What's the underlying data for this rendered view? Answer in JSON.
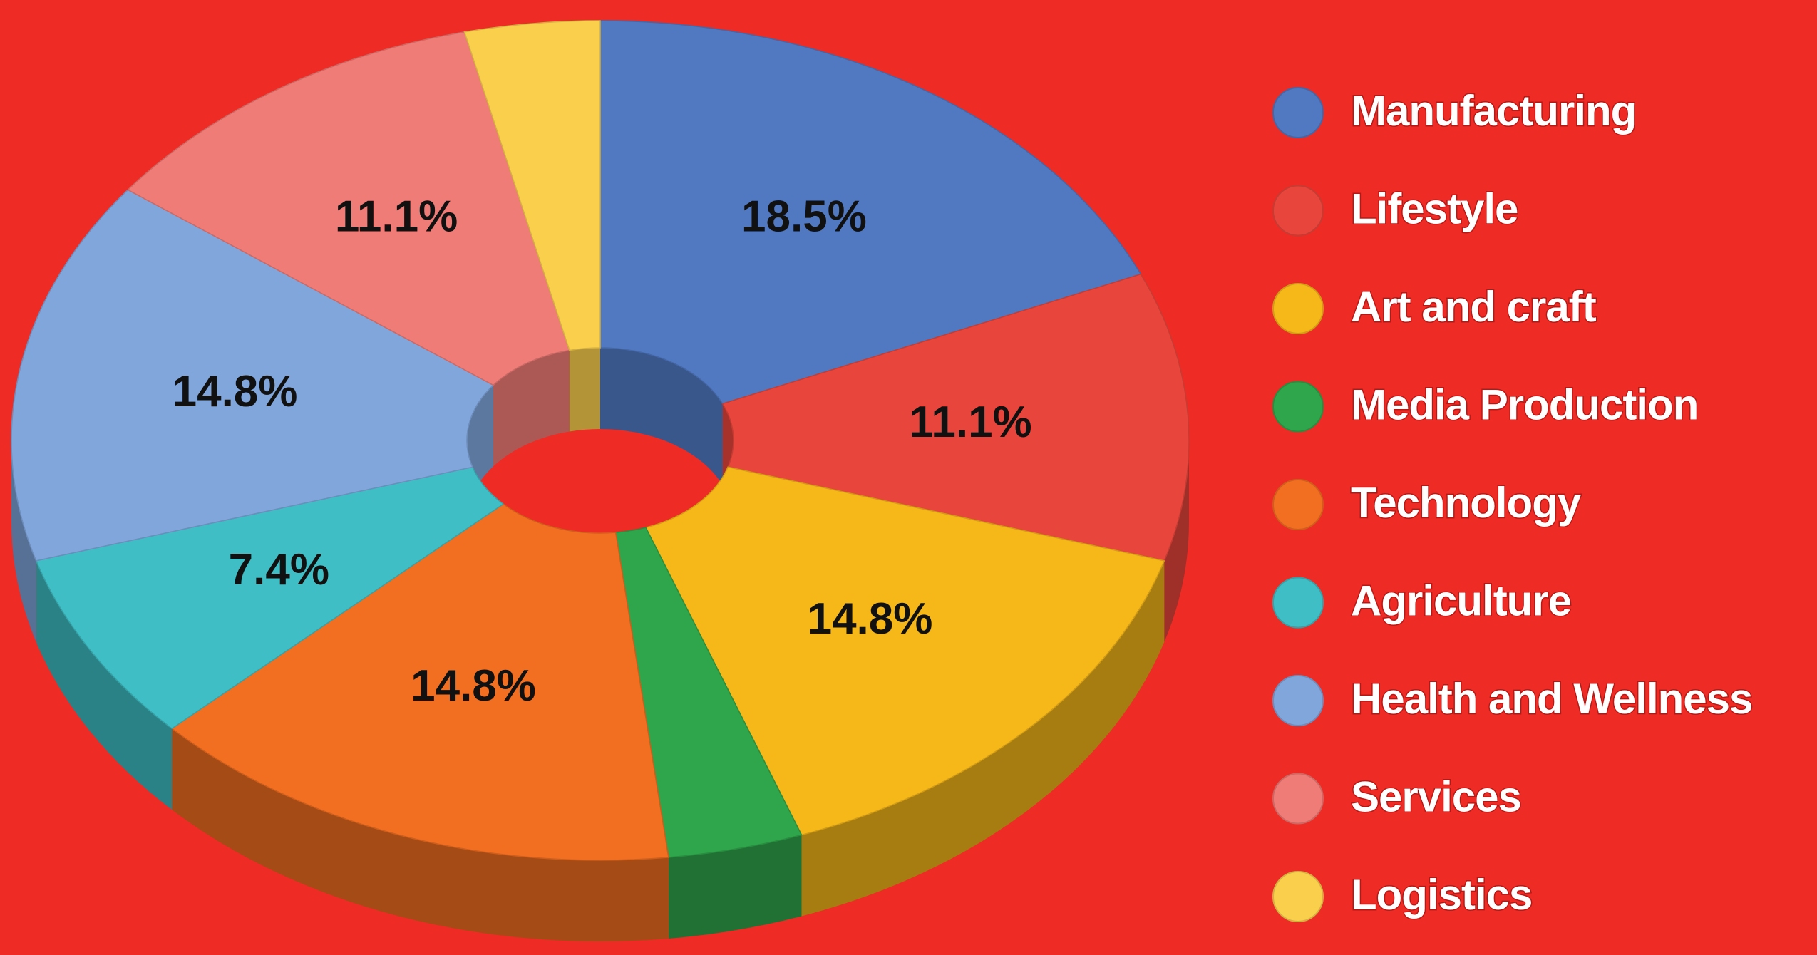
{
  "chart_data": {
    "type": "pie",
    "style": "3d-donut",
    "categories": [
      "Manufacturing",
      "Lifestyle",
      "Art and craft",
      "Media Production",
      "Technology",
      "Agriculture",
      "Health and Wellness",
      "Services",
      "Logistics"
    ],
    "values": [
      18.5,
      11.1,
      14.8,
      3.7,
      14.8,
      7.4,
      14.8,
      11.1,
      3.7
    ],
    "value_labels": [
      "18.5%",
      "11.1%",
      "14.8%",
      null,
      "14.8%",
      "7.4%",
      "14.8%",
      "11.1%",
      null
    ],
    "colors": [
      "#5079c2",
      "#e8463c",
      "#f6b719",
      "#2fa64b",
      "#f26f21",
      "#3fbfc5",
      "#80a6dc",
      "#ef7c77",
      "#f9cf4c"
    ],
    "legend": "right"
  }
}
